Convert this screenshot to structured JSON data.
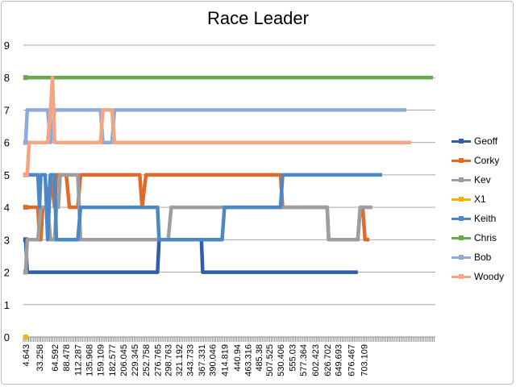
{
  "chart_data": {
    "type": "line",
    "title": "Race Leader",
    "ylim": [
      0,
      9
    ],
    "yticks": [
      0,
      1,
      2,
      3,
      4,
      5,
      6,
      7,
      8,
      9
    ],
    "x_tick_labels": [
      "4.643",
      "33.258",
      "64.592",
      "88.478",
      "112.287",
      "135.968",
      "159.109",
      "182.577",
      "206.045",
      "229.345",
      "252.758",
      "276.765",
      "298.763",
      "321.192",
      "343.733",
      "367.331",
      "390.046",
      "414.819",
      "440.94",
      "463.316",
      "485.38",
      "507.525",
      "530.406",
      "555.03",
      "577.364",
      "602.423",
      "626.702",
      "649.693",
      "676.467",
      "703.109"
    ],
    "x_label_times": [
      4.643,
      33.258,
      64.592,
      88.478,
      112.287,
      135.968,
      159.109,
      182.577,
      206.045,
      229.345,
      252.758,
      276.765,
      298.763,
      321.192,
      343.733,
      367.331,
      390.046,
      414.819,
      440.94,
      463.316,
      485.38,
      507.525,
      530.406,
      555.03,
      577.364,
      602.423,
      626.702,
      649.693,
      676.467,
      703.109
    ],
    "x_max": 850,
    "grid": "horizontal",
    "legend_position": "right",
    "series": [
      {
        "name": "Geoff",
        "color": "#2e5fa8",
        "points": [
          [
            4.643,
            3
          ],
          [
            8,
            2
          ],
          [
            276.765,
            2
          ],
          [
            280,
            3
          ],
          [
            367.331,
            3
          ],
          [
            370,
            2
          ],
          [
            690,
            2
          ]
        ]
      },
      {
        "name": "Corky",
        "color": "#e06a27",
        "points": [
          [
            4.643,
            4
          ],
          [
            30,
            4
          ],
          [
            33.258,
            3
          ],
          [
            36,
            3
          ],
          [
            40,
            4
          ],
          [
            50,
            4
          ],
          [
            56,
            5
          ],
          [
            64.592,
            4
          ],
          [
            68,
            5
          ],
          [
            88.478,
            5
          ],
          [
            95,
            4
          ],
          [
            112.287,
            4
          ],
          [
            118,
            5
          ],
          [
            240,
            5
          ],
          [
            245,
            4
          ],
          [
            252.758,
            5
          ],
          [
            530.406,
            5
          ],
          [
            535,
            4
          ],
          [
            626.702,
            4
          ],
          [
            630,
            3
          ],
          [
            690,
            3
          ],
          [
            695,
            4
          ],
          [
            700,
            4
          ],
          [
            705,
            3
          ],
          [
            714,
            3
          ]
        ]
      },
      {
        "name": "Kev",
        "color": "#9e9e9e",
        "points": [
          [
            4.643,
            2
          ],
          [
            8,
            3
          ],
          [
            30,
            3
          ],
          [
            36,
            4
          ],
          [
            50,
            4
          ],
          [
            56,
            3
          ],
          [
            64.592,
            3
          ],
          [
            68,
            4
          ],
          [
            72,
            4
          ],
          [
            76,
            5
          ],
          [
            112.287,
            5
          ],
          [
            118,
            3
          ],
          [
            298.763,
            3
          ],
          [
            305,
            4
          ],
          [
            530.406,
            4
          ],
          [
            626.702,
            4
          ],
          [
            630,
            3
          ],
          [
            690,
            3
          ],
          [
            695,
            4
          ],
          [
            720,
            4
          ]
        ]
      },
      {
        "name": "X1",
        "color": "#f2b500",
        "points": [
          [
            4.643,
            0
          ],
          [
            6,
            0
          ]
        ]
      },
      {
        "name": "Keith",
        "color": "#4a88c7",
        "points": [
          [
            4.643,
            5
          ],
          [
            30,
            5
          ],
          [
            33.258,
            4
          ],
          [
            36,
            5
          ],
          [
            45,
            5
          ],
          [
            50,
            3
          ],
          [
            56,
            5
          ],
          [
            64.592,
            5
          ],
          [
            68,
            3
          ],
          [
            112.287,
            3
          ],
          [
            118,
            4
          ],
          [
            276.765,
            4
          ],
          [
            280,
            3
          ],
          [
            367.331,
            3
          ],
          [
            370,
            3
          ],
          [
            410,
            3
          ],
          [
            414.819,
            4
          ],
          [
            530.406,
            4
          ],
          [
            535,
            5
          ],
          [
            740,
            5
          ]
        ]
      },
      {
        "name": "Chris",
        "color": "#6aa84f",
        "points": [
          [
            4.643,
            8
          ],
          [
            845,
            8
          ]
        ]
      },
      {
        "name": "Bob",
        "color": "#8faadc",
        "points": [
          [
            4.643,
            6
          ],
          [
            8,
            7
          ],
          [
            50,
            7
          ],
          [
            56,
            6
          ],
          [
            64.592,
            7
          ],
          [
            159.109,
            7
          ],
          [
            164,
            6
          ],
          [
            182.577,
            6
          ],
          [
            188,
            7
          ],
          [
            790,
            7
          ]
        ]
      },
      {
        "name": "Woody",
        "color": "#f4a582",
        "points": [
          [
            4.643,
            5
          ],
          [
            8,
            5
          ],
          [
            12,
            6
          ],
          [
            50,
            6
          ],
          [
            56,
            7
          ],
          [
            60,
            8
          ],
          [
            64.592,
            6
          ],
          [
            159.109,
            6
          ],
          [
            164,
            7
          ],
          [
            182.577,
            7
          ],
          [
            188,
            6
          ],
          [
            800,
            6
          ]
        ]
      }
    ]
  }
}
